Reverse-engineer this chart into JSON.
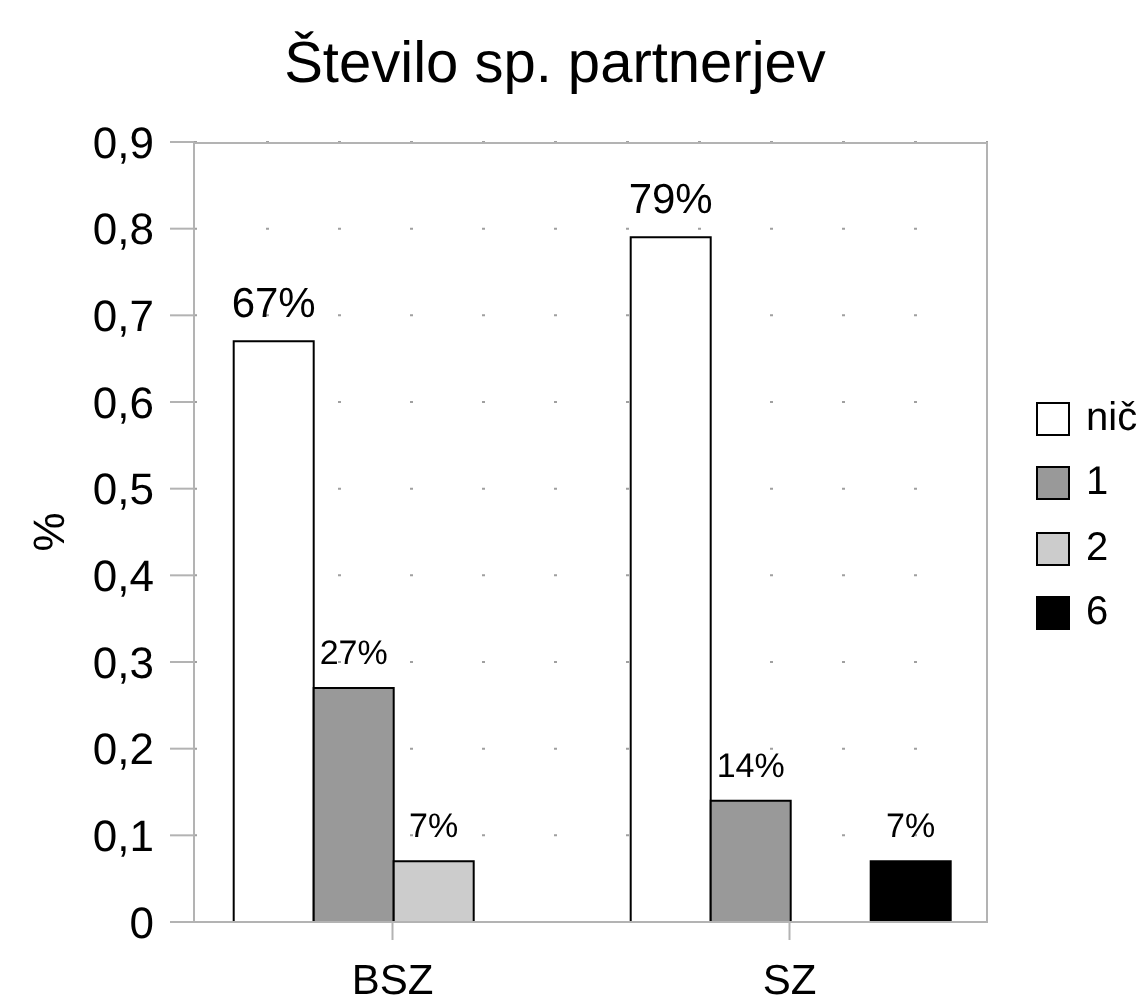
{
  "chart_data": {
    "type": "bar",
    "title": "Število sp. partnerjev",
    "ylabel": "%",
    "categories": [
      "BSZ",
      "SZ"
    ],
    "series": [
      {
        "name": "nič",
        "color": "#ffffff",
        "values": [
          0.67,
          0.79
        ],
        "value_labels": [
          "67%",
          "79%"
        ]
      },
      {
        "name": "1",
        "color": "#999999",
        "values": [
          0.27,
          0.14
        ],
        "value_labels": [
          "27%",
          "14%"
        ]
      },
      {
        "name": "2",
        "color": "#cccccc",
        "values": [
          0.07,
          null
        ],
        "value_labels": [
          "7%",
          null
        ]
      },
      {
        "name": "6",
        "color": "#000000",
        "values": [
          null,
          0.07
        ],
        "value_labels": [
          null,
          "7%"
        ]
      }
    ],
    "ylim": [
      0,
      0.9
    ],
    "yticks": [
      0,
      {
        "value": 0.1,
        "label": "0,1"
      },
      {
        "value": 0.2,
        "label": "0,2"
      },
      {
        "value": 0.3,
        "label": "0,3"
      },
      {
        "value": 0.4,
        "label": "0,4"
      },
      {
        "value": 0.5,
        "label": "0,5"
      },
      {
        "value": 0.6,
        "label": "0,6"
      },
      {
        "value": 0.7,
        "label": "0,7"
      },
      {
        "value": 0.8,
        "label": "0,8"
      },
      {
        "value": 0.9,
        "label": "0,9"
      }
    ],
    "grid": "y",
    "legend": "right"
  }
}
